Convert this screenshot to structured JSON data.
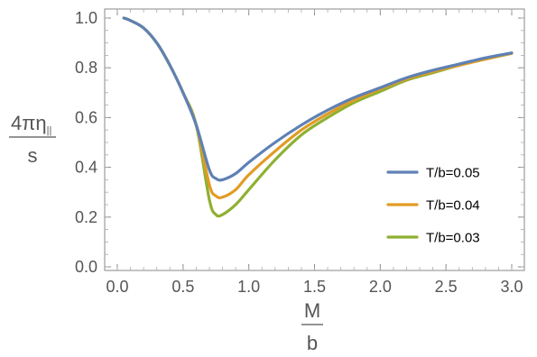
{
  "chart_data": {
    "type": "line",
    "title": "",
    "xlabel": {
      "numerator": "M",
      "denominator": "b"
    },
    "ylabel": {
      "numerator": "4πη",
      "subscript": "||",
      "denominator": "s"
    },
    "xlim": [
      0.0,
      3.0
    ],
    "ylim": [
      0.0,
      1.0
    ],
    "xticks": [
      "0.0",
      "0.5",
      "1.0",
      "1.5",
      "2.0",
      "2.5",
      "3.0"
    ],
    "yticks": [
      "0.0",
      "0.2",
      "0.4",
      "0.6",
      "0.8",
      "1.0"
    ],
    "grid": false,
    "legend_position": "right-middle",
    "series": [
      {
        "name": "T/b=0.05",
        "color": "#5e81b5",
        "x": [
          0.05,
          0.1,
          0.2,
          0.3,
          0.4,
          0.5,
          0.6,
          0.7,
          0.75,
          0.8,
          0.9,
          1.0,
          1.2,
          1.4,
          1.6,
          1.8,
          2.0,
          2.2,
          2.4,
          2.6,
          2.8,
          3.0
        ],
        "y": [
          1.0,
          0.99,
          0.96,
          0.9,
          0.81,
          0.7,
          0.57,
          0.39,
          0.355,
          0.35,
          0.375,
          0.42,
          0.5,
          0.57,
          0.63,
          0.68,
          0.72,
          0.76,
          0.79,
          0.815,
          0.84,
          0.86
        ]
      },
      {
        "name": "T/b=0.04",
        "color": "#e19c24",
        "x": [
          0.05,
          0.1,
          0.2,
          0.3,
          0.4,
          0.5,
          0.6,
          0.7,
          0.75,
          0.8,
          0.9,
          1.0,
          1.2,
          1.4,
          1.6,
          1.8,
          2.0,
          2.2,
          2.4,
          2.6,
          2.8,
          3.0
        ],
        "y": [
          1.0,
          0.99,
          0.96,
          0.9,
          0.81,
          0.7,
          0.57,
          0.33,
          0.285,
          0.28,
          0.31,
          0.37,
          0.465,
          0.55,
          0.615,
          0.67,
          0.715,
          0.755,
          0.785,
          0.81,
          0.835,
          0.858
        ]
      },
      {
        "name": "T/b=0.03",
        "color": "#8fb032",
        "x": [
          0.05,
          0.1,
          0.2,
          0.3,
          0.4,
          0.5,
          0.6,
          0.7,
          0.75,
          0.8,
          0.9,
          1.0,
          1.2,
          1.4,
          1.6,
          1.8,
          2.0,
          2.2,
          2.4,
          2.6,
          2.8,
          3.0
        ],
        "y": [
          1.0,
          0.99,
          0.96,
          0.9,
          0.81,
          0.7,
          0.57,
          0.27,
          0.21,
          0.21,
          0.25,
          0.31,
          0.43,
          0.53,
          0.6,
          0.66,
          0.705,
          0.75,
          0.78,
          0.81,
          0.835,
          0.858
        ]
      }
    ]
  }
}
